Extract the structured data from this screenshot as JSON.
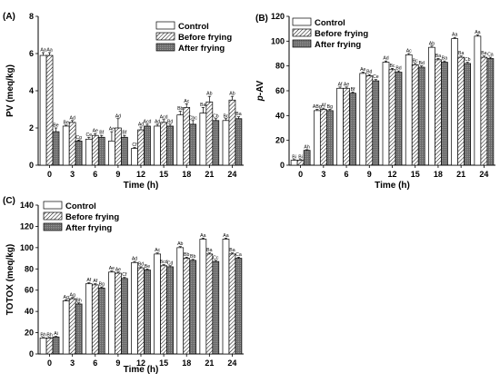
{
  "chart_data": [
    {
      "type": "bar",
      "panel_label": "(A)",
      "categories": [
        "0",
        "3",
        "6",
        "9",
        "12",
        "15",
        "18",
        "21",
        "24"
      ],
      "xlabel": "Time (h)",
      "ylabel": "PV (meq/kg)",
      "ylim": [
        0,
        8
      ],
      "yticks": [
        0,
        2,
        4,
        6,
        8
      ],
      "grid": false,
      "legend_position": "top-right",
      "series": [
        {
          "name": "Control",
          "values": [
            5.9,
            2.1,
            1.4,
            1.3,
            0.9,
            2.1,
            2.7,
            2.8,
            2.4
          ],
          "errors": [
            0.15,
            0.05,
            0.1,
            0.5,
            0.05,
            0.1,
            0.2,
            0.3,
            0.1
          ],
          "letters": [
            "Aa",
            "Be",
            "Ce",
            "Ae",
            "Cf",
            "Ad",
            "Bb",
            "Ba",
            "Bc"
          ]
        },
        {
          "name": "Before frying",
          "values": [
            5.9,
            2.3,
            1.6,
            2.0,
            1.9,
            2.3,
            3.1,
            3.4,
            3.5
          ],
          "errors": [
            0.15,
            0.1,
            0.1,
            0.5,
            0.15,
            0.15,
            0.2,
            0.3,
            0.2
          ],
          "letters": [
            "Aa",
            "Ad",
            "Ae",
            "Ad",
            "Ad",
            "Acd",
            "Ac",
            "Ab",
            "Ab"
          ]
        },
        {
          "name": "After frying",
          "values": [
            1.8,
            1.3,
            1.5,
            1.5,
            2.1,
            2.1,
            2.2,
            2.4,
            2.5
          ],
          "errors": [
            0.2,
            0.05,
            0.1,
            0.1,
            0.1,
            0.1,
            0.2,
            0.1,
            0.1
          ],
          "letters": [
            "Be",
            "Cg",
            "Bf",
            "Bf",
            "Acd",
            "Bd",
            "Cbc",
            "Cb",
            "Ba"
          ]
        }
      ]
    },
    {
      "type": "bar",
      "panel_label": "(B)",
      "categories": [
        "0",
        "3",
        "6",
        "9",
        "12",
        "15",
        "18",
        "21",
        "24"
      ],
      "xlabel": "Time (h)",
      "ylabel": "p-AV",
      "ylim": [
        0,
        120
      ],
      "yticks": [
        0,
        20,
        40,
        60,
        80,
        100,
        120
      ],
      "grid": false,
      "legend_position": "top-left",
      "series": [
        {
          "name": "Control",
          "values": [
            4,
            44,
            62,
            74,
            83,
            89,
            95,
            102,
            104
          ],
          "errors": [
            0.5,
            1,
            1,
            1,
            1,
            1,
            1,
            1,
            1
          ],
          "letters": [
            "Bi",
            "ABg",
            "Af",
            "Ae",
            "Ad",
            "Ac",
            "Ab",
            "Aa",
            "Aa"
          ]
        },
        {
          "name": "Before frying",
          "values": [
            4,
            45,
            62,
            72,
            77,
            81,
            85,
            87,
            87
          ],
          "errors": [
            0.5,
            1,
            1,
            1,
            1,
            1,
            1,
            1,
            1
          ],
          "letters": [
            "Bi",
            "Af",
            "Ae",
            "Bd",
            "Bc",
            "Bc",
            "Ba",
            "Ba",
            "Ba"
          ]
        },
        {
          "name": "After frying",
          "values": [
            12,
            44,
            58,
            68,
            75,
            79,
            83,
            82,
            86
          ],
          "errors": [
            0.5,
            1,
            1,
            1,
            1,
            1,
            1,
            1,
            1
          ],
          "letters": [
            "Ah",
            "Bg",
            "Bf",
            "Ce",
            "Bd",
            "Bd",
            "Ba",
            "Cb",
            "Ca"
          ]
        }
      ]
    },
    {
      "type": "bar",
      "panel_label": "(C)",
      "categories": [
        "0",
        "3",
        "6",
        "9",
        "12",
        "15",
        "18",
        "21",
        "24"
      ],
      "xlabel": "Time (h)",
      "ylabel": "TOTOX (meq/kg)",
      "ylim": [
        0,
        140
      ],
      "yticks": [
        0,
        20,
        40,
        60,
        80,
        100,
        120,
        140
      ],
      "grid": false,
      "legend_position": "top-left",
      "series": [
        {
          "name": "Control",
          "values": [
            15,
            50,
            66,
            77,
            86,
            94,
            100,
            108,
            108
          ],
          "errors": [
            0.5,
            1,
            1,
            1,
            1,
            1,
            1,
            1,
            1
          ],
          "letters": [
            "Bh",
            "Ag",
            "Af",
            "Ae",
            "Ad",
            "Ac",
            "Ab",
            "Aa",
            "Aa"
          ]
        },
        {
          "name": "Before frying",
          "values": [
            15,
            52,
            65,
            76,
            81,
            83,
            90,
            94,
            94
          ],
          "errors": [
            0.5,
            1,
            1,
            1,
            1,
            1,
            1,
            1,
            1
          ],
          "letters": [
            "Bh",
            "Ag",
            "Af",
            "Ae",
            "Bd",
            "Bcd",
            "Bb",
            "Ba",
            "Ba"
          ]
        },
        {
          "name": "After frying",
          "values": [
            16,
            47,
            62,
            71,
            79,
            82,
            88,
            87,
            90
          ],
          "errors": [
            0.5,
            1,
            1,
            1,
            1,
            1,
            1,
            1,
            1
          ],
          "letters": [
            "Ai",
            "Bh",
            "Bg",
            "Cf",
            "Be",
            "Cd",
            "Bb",
            "Cc",
            "Ca"
          ]
        }
      ]
    }
  ]
}
